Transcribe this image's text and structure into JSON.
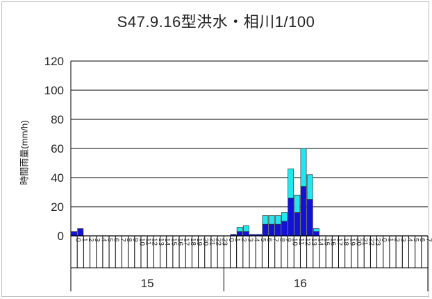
{
  "chart_data": {
    "type": "bar",
    "stacked": true,
    "title": "S47.9.16型洪水・相川1/100",
    "ylabel": "時間雨量(mm/h)",
    "xlabel": "",
    "ylim": [
      0,
      120
    ],
    "yticks": [
      "120",
      "100",
      "80",
      "60",
      "40",
      "20",
      "0"
    ],
    "grid": true,
    "legend": "none",
    "hour_labels": [
      "0",
      "1",
      "2",
      "3",
      "4",
      "5",
      "6",
      "7",
      "8",
      "9",
      "10",
      "11",
      "12",
      "13",
      "14",
      "15",
      "16",
      "17",
      "18",
      "19",
      "20",
      "21",
      "22",
      "23",
      "0",
      "1",
      "2",
      "3",
      "4",
      "5",
      "6",
      "7",
      "8",
      "9",
      "10",
      "11",
      "12",
      "13",
      "14",
      "15",
      "16",
      "17",
      "18",
      "19",
      "20",
      "21",
      "22",
      "23",
      "0",
      "1",
      "2",
      "3",
      "4",
      "5",
      "6",
      "7"
    ],
    "day_labels": [
      {
        "label": "15",
        "start": 0,
        "end": 23
      },
      {
        "label": "16",
        "start": 24,
        "end": 47
      }
    ],
    "colors": {
      "lower": "#1212d6",
      "upper": "#22e6f0",
      "edge": "#333333"
    },
    "series": [
      {
        "values": [
          3,
          5,
          0,
          0,
          0,
          0,
          0,
          0,
          0,
          0,
          0,
          0,
          0,
          0,
          0,
          0,
          0,
          0,
          0,
          0,
          0,
          0,
          0,
          0,
          0,
          1,
          3,
          3,
          1,
          1,
          8,
          8,
          8,
          10,
          26,
          16,
          34,
          25,
          3,
          0,
          0,
          0,
          0,
          0,
          0,
          0,
          0,
          0,
          0,
          0,
          0,
          0,
          0,
          0,
          0,
          0
        ]
      },
      {
        "values": [
          0,
          0,
          0,
          0,
          0,
          0,
          0,
          0,
          0,
          0,
          0,
          0,
          0,
          0,
          0,
          0,
          0,
          0,
          0,
          0,
          0,
          0,
          0,
          0,
          0,
          0,
          3,
          4,
          0,
          0,
          6,
          6,
          6,
          6,
          20,
          12,
          26,
          17,
          2,
          0,
          0,
          0,
          0,
          0,
          0,
          0,
          0,
          0,
          0,
          0,
          0,
          0,
          0,
          0,
          0,
          0
        ]
      }
    ]
  }
}
